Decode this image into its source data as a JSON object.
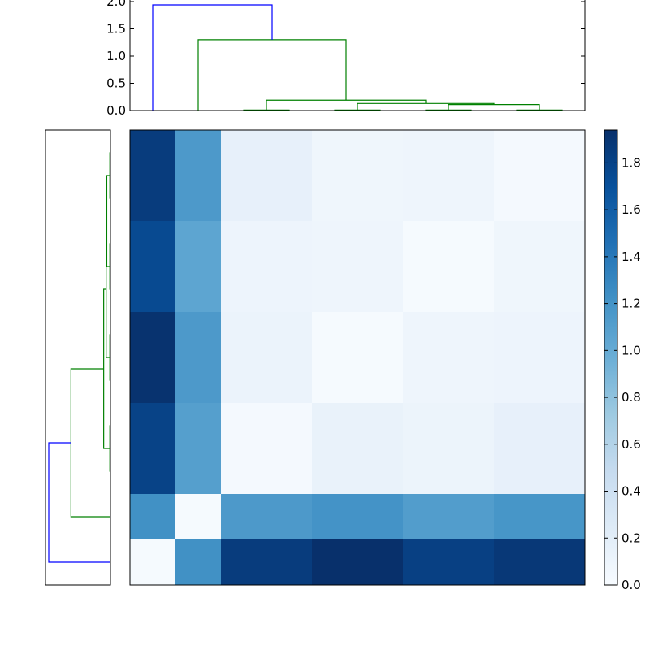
{
  "chart_data": [
    {
      "panel": "top-dendrogram",
      "type": "dendrogram",
      "orientation": "top",
      "ylim": [
        0,
        2.0
      ],
      "yticks": [
        {
          "value": 0.0,
          "label": "0.0"
        },
        {
          "value": 0.5,
          "label": "0.5"
        },
        {
          "value": 1.0,
          "label": "1.0"
        },
        {
          "value": 1.5,
          "label": "1.5"
        },
        {
          "value": 2.0,
          "label": "2.0"
        }
      ],
      "leaves": 10,
      "links": [
        {
          "left": 2.5,
          "right": 3.5,
          "height": 0.01,
          "hl": 0,
          "hr": 0,
          "color": "green"
        },
        {
          "left": 4.5,
          "right": 5.5,
          "height": 0.01,
          "hl": 0,
          "hr": 0,
          "color": "green"
        },
        {
          "left": 6.5,
          "right": 7.5,
          "height": 0.01,
          "hl": 0,
          "hr": 0,
          "color": "green"
        },
        {
          "left": 8.5,
          "right": 9.5,
          "height": 0.01,
          "hl": 0,
          "hr": 0,
          "color": "green"
        },
        {
          "left": 7.0,
          "right": 9.0,
          "height": 0.11,
          "hl": 0.01,
          "hr": 0.01,
          "color": "green"
        },
        {
          "left": 5.0,
          "right": 8.0,
          "height": 0.13,
          "hl": 0.01,
          "hr": 0.11,
          "color": "green"
        },
        {
          "left": 3.0,
          "right": 6.5,
          "height": 0.19,
          "hl": 0.01,
          "hr": 0.13,
          "color": "green"
        },
        {
          "left": 1.5,
          "right": 4.75,
          "height": 1.3,
          "hl": 0,
          "hr": 0.19,
          "color": "green"
        },
        {
          "left": 0.5,
          "right": 3.125,
          "height": 1.94,
          "hl": 0,
          "hr": 1.3,
          "color": "blue"
        }
      ]
    },
    {
      "panel": "left-dendrogram",
      "type": "dendrogram",
      "orientation": "left",
      "leaves": 10,
      "links": [
        {
          "left": 0.5,
          "right": 1.5,
          "height": 0.01,
          "hl": 0,
          "hr": 0,
          "color": "green"
        },
        {
          "left": 2.5,
          "right": 3.5,
          "height": 0.01,
          "hl": 0,
          "hr": 0,
          "color": "green"
        },
        {
          "left": 4.5,
          "right": 5.5,
          "height": 0.01,
          "hl": 0,
          "hr": 0,
          "color": "green"
        },
        {
          "left": 6.5,
          "right": 7.5,
          "height": 0.01,
          "hl": 0,
          "hr": 0,
          "color": "green"
        },
        {
          "left": 1.0,
          "right": 3.0,
          "height": 0.06,
          "hl": 0.01,
          "hr": 0.01,
          "color": "green"
        },
        {
          "left": 2.0,
          "right": 5.0,
          "height": 0.07,
          "hl": 0.06,
          "hr": 0.01,
          "color": "green"
        },
        {
          "left": 3.5,
          "right": 7.0,
          "height": 0.11,
          "hl": 0.07,
          "hr": 0.01,
          "color": "green"
        },
        {
          "left": 5.25,
          "right": 8.5,
          "height": 0.64,
          "hl": 0.11,
          "hr": 0,
          "color": "green"
        },
        {
          "left": 6.875,
          "right": 9.5,
          "height": 1.0,
          "hl": 0.64,
          "hr": 0,
          "color": "blue"
        }
      ]
    },
    {
      "panel": "distance-matrix",
      "type": "heatmap",
      "colormap": "Blues",
      "vmin": 0,
      "vmax": 1.94,
      "colorbar_ticks": [
        {
          "value": 0.0,
          "label": "0.0"
        },
        {
          "value": 0.2,
          "label": "0.2"
        },
        {
          "value": 0.4,
          "label": "0.4"
        },
        {
          "value": 0.6,
          "label": "0.6"
        },
        {
          "value": 0.8,
          "label": "0.8"
        },
        {
          "value": 1.0,
          "label": "1.0"
        },
        {
          "value": 1.2,
          "label": "1.2"
        },
        {
          "value": 1.4,
          "label": "1.4"
        },
        {
          "value": 1.6,
          "label": "1.6"
        },
        {
          "value": 1.8,
          "label": "1.8"
        }
      ],
      "values": [
        [
          1.85,
          1.15,
          0.16,
          0.16,
          0.08,
          0.08,
          0.09,
          0.09,
          0.03,
          0.03
        ],
        [
          1.85,
          1.15,
          0.16,
          0.16,
          0.08,
          0.08,
          0.09,
          0.09,
          0.03,
          0.03
        ],
        [
          1.75,
          1.05,
          0.1,
          0.1,
          0.09,
          0.09,
          0.02,
          0.02,
          0.08,
          0.08
        ],
        [
          1.75,
          1.05,
          0.1,
          0.1,
          0.09,
          0.09,
          0.02,
          0.02,
          0.08,
          0.08
        ],
        [
          1.92,
          1.15,
          0.12,
          0.12,
          0.02,
          0.02,
          0.09,
          0.09,
          0.1,
          0.1
        ],
        [
          1.92,
          1.15,
          0.12,
          0.12,
          0.02,
          0.02,
          0.09,
          0.09,
          0.1,
          0.1
        ],
        [
          1.8,
          1.1,
          0.03,
          0.03,
          0.14,
          0.14,
          0.11,
          0.11,
          0.16,
          0.16
        ],
        [
          1.8,
          1.1,
          0.03,
          0.03,
          0.14,
          0.14,
          0.11,
          0.11,
          0.16,
          0.16
        ],
        [
          1.22,
          0.02,
          1.15,
          1.15,
          1.2,
          1.2,
          1.12,
          1.12,
          1.18,
          1.18
        ],
        [
          0.02,
          1.22,
          1.85,
          1.85,
          1.94,
          1.94,
          1.82,
          1.82,
          1.88,
          1.88
        ]
      ]
    }
  ]
}
